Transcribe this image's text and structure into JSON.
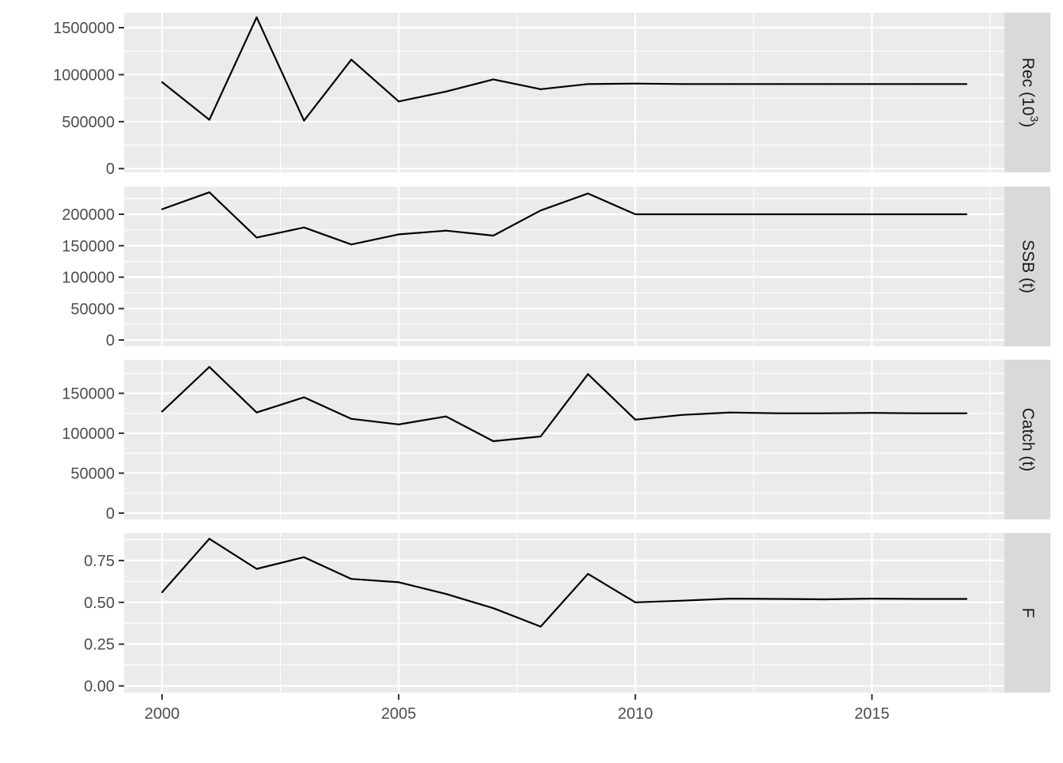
{
  "chart_data": {
    "type": "line",
    "layout": "faceted-vertical",
    "x_ticks": [
      2000,
      2005,
      2010,
      2015
    ],
    "xlim": [
      1999.2,
      2017.8
    ],
    "grid": true,
    "x": [
      2000,
      2001,
      2002,
      2003,
      2004,
      2005,
      2006,
      2007,
      2008,
      2009,
      2010,
      2011,
      2012,
      2013,
      2014,
      2015,
      2016,
      2017
    ],
    "panels": [
      {
        "strip": "Rec (10",
        "strip_sup": "3",
        "strip_tail": ")",
        "ylim": [
          -40000,
          1660000
        ],
        "y_ticks": [
          0,
          500000,
          1000000,
          1500000
        ],
        "y_tick_labels": [
          "0",
          "500000",
          "1000000",
          "1500000"
        ],
        "values": [
          920000,
          520000,
          1610000,
          510000,
          1160000,
          715000,
          820000,
          950000,
          845000,
          900000,
          905000,
          900000,
          900000,
          900000,
          900000,
          900000,
          900000,
          900000
        ]
      },
      {
        "strip": "SSB (t)",
        "ylim": [
          -10000,
          244000
        ],
        "y_ticks": [
          0,
          50000,
          100000,
          150000,
          200000
        ],
        "y_tick_labels": [
          "0",
          "50000",
          "100000",
          "150000",
          "200000"
        ],
        "values": [
          208000,
          235000,
          163000,
          179000,
          152000,
          168000,
          174000,
          166000,
          206000,
          233000,
          200000,
          200000,
          200000,
          200000,
          200000,
          200000,
          200000,
          200000
        ]
      },
      {
        "strip": "Catch (t)",
        "ylim": [
          -8000,
          192000
        ],
        "y_ticks": [
          0,
          50000,
          100000,
          150000
        ],
        "y_tick_labels": [
          "0",
          "50000",
          "100000",
          "150000"
        ],
        "values": [
          127000,
          183000,
          126000,
          145000,
          118000,
          111000,
          121000,
          90000,
          96000,
          174000,
          117000,
          123000,
          126000,
          125000,
          125000,
          125500,
          125000,
          125000
        ]
      },
      {
        "strip": "F",
        "ylim": [
          -0.04,
          0.915
        ],
        "y_ticks": [
          0,
          0.25,
          0.5,
          0.75
        ],
        "y_tick_labels": [
          "0.00",
          "0.25",
          "0.50",
          "0.75"
        ],
        "values": [
          0.56,
          0.88,
          0.7,
          0.77,
          0.64,
          0.62,
          0.55,
          0.465,
          0.355,
          0.67,
          0.5,
          0.51,
          0.522,
          0.52,
          0.518,
          0.522,
          0.52,
          0.52
        ]
      }
    ]
  }
}
